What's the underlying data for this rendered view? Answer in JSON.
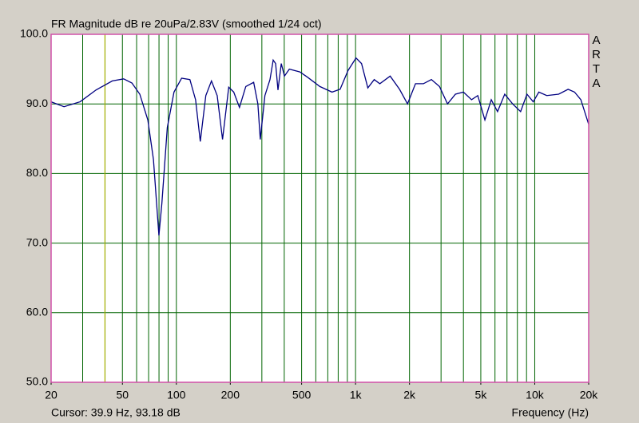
{
  "chart_data": {
    "type": "line",
    "title": "FR Magnitude dB re 20uPa/2.83V (smoothed 1/24 oct)",
    "watermark": "ARTA",
    "xlabel": "Frequency (Hz)",
    "cursor": {
      "label": "Cursor: 39.9 Hz, 93.18 dB",
      "x": 39.9,
      "color": "#c8c000"
    },
    "xscale": "log",
    "xlim": [
      20,
      20000
    ],
    "ylim": [
      50,
      100
    ],
    "xticks": [
      20,
      50,
      100,
      200,
      500,
      {
        "value": 1000,
        "label": "1k"
      },
      {
        "value": 2000,
        "label": "2k"
      },
      {
        "value": 5000,
        "label": "5k"
      },
      {
        "value": 10000,
        "label": "10k"
      },
      {
        "value": 20000,
        "label": "20k"
      }
    ],
    "xgrid": [
      20,
      30,
      40,
      50,
      60,
      70,
      80,
      90,
      100,
      200,
      300,
      400,
      500,
      600,
      700,
      800,
      900,
      1000,
      2000,
      3000,
      4000,
      5000,
      6000,
      7000,
      8000,
      9000,
      10000,
      20000
    ],
    "yticks": [
      {
        "value": 50,
        "label": "50.0"
      },
      {
        "value": 60,
        "label": "60.0"
      },
      {
        "value": 70,
        "label": "70.0"
      },
      {
        "value": 80,
        "label": "80.0"
      },
      {
        "value": 90,
        "label": "90.0"
      },
      {
        "value": 100,
        "label": "100.0"
      }
    ],
    "grid": true,
    "color": "#000080",
    "x": [
      20,
      23.6,
      29,
      35.6,
      43.9,
      50.8,
      56.5,
      62.5,
      69.3,
      74.5,
      79.9,
      83,
      89,
      97,
      107,
      119,
      128,
      136,
      146,
      157,
      169,
      181,
      196,
      209,
      225,
      244,
      270,
      285,
      294,
      312,
      333,
      347,
      358,
      369,
      385,
      401,
      427,
      489,
      542,
      632,
      739,
      820,
      908,
      1006,
      1080,
      1171,
      1271,
      1366,
      1560,
      1760,
      1950,
      2160,
      2390,
      2650,
      2940,
      3260,
      3610,
      4000,
      4440,
      4810,
      5270,
      5720,
      6200,
      6800,
      7530,
      8340,
      9050,
      9810,
      10540,
      11670,
      13600,
      15360,
      16680,
      18090,
      19980
    ],
    "values": [
      90.3,
      89.6,
      90.3,
      92.0,
      93.3,
      93.6,
      93.0,
      91.4,
      87.7,
      82.0,
      71.1,
      75.7,
      86.6,
      91.7,
      93.7,
      93.5,
      90.6,
      84.6,
      91.2,
      93.3,
      91.2,
      84.9,
      92.4,
      91.7,
      89.5,
      92.5,
      93.1,
      90.0,
      84.9,
      91.2,
      93.5,
      96.3,
      95.8,
      92.0,
      95.8,
      94.0,
      95.0,
      94.6,
      93.8,
      92.5,
      91.7,
      92.1,
      94.8,
      96.6,
      95.8,
      92.3,
      93.5,
      92.9,
      94.0,
      92.1,
      90.0,
      92.9,
      92.9,
      93.5,
      92.5,
      90.0,
      91.4,
      91.7,
      90.6,
      91.2,
      87.7,
      90.6,
      88.9,
      91.4,
      90.0,
      88.9,
      91.4,
      90.3,
      91.7,
      91.2,
      91.4,
      92.1,
      91.7,
      90.6,
      87.1
    ]
  }
}
